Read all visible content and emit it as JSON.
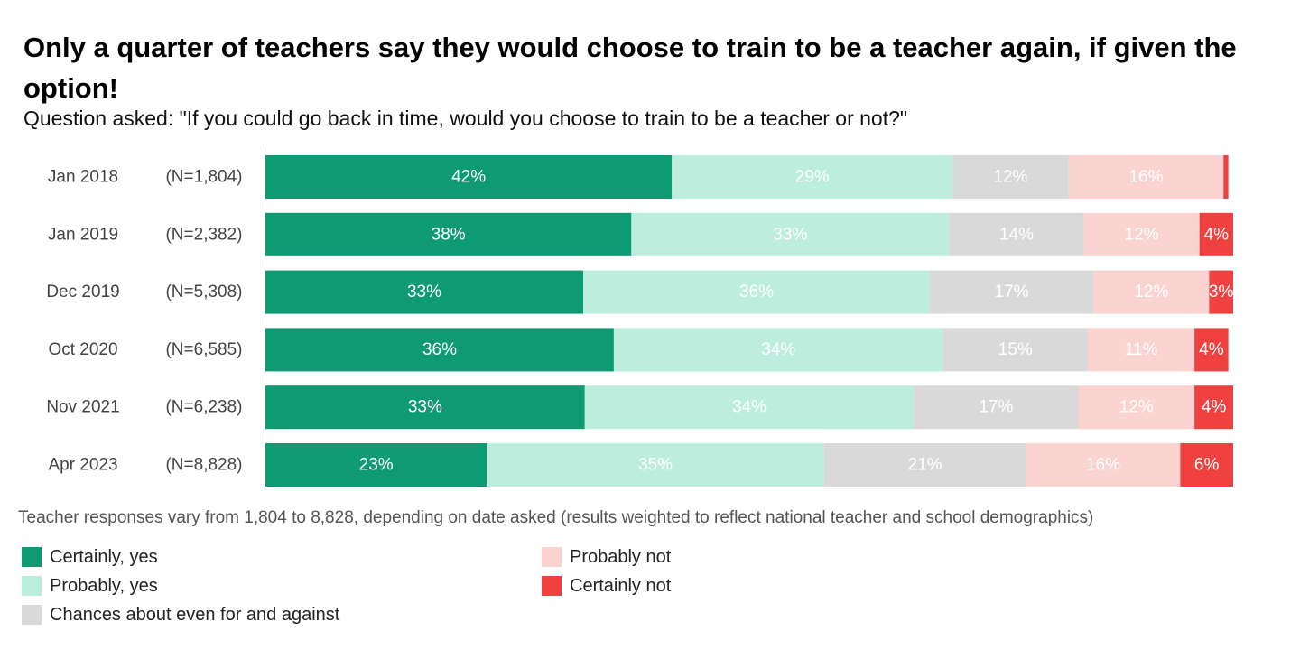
{
  "title": "Only a quarter of teachers say they would choose to train to be a teacher again, if given the option!",
  "subtitle": "Question asked: \"If you could go back in time, would you choose to train to be a teacher or not?\"",
  "note": "Teacher responses vary from 1,804 to 8,828, depending on date asked (results weighted to reflect national teacher and school demographics)",
  "colors": {
    "certainly_yes": "#0e9a72",
    "probably_yes": "#bdeedd",
    "even": "#d9d9d9",
    "probably_not": "#fbd3d1",
    "certainly_not": "#f04141"
  },
  "legend": [
    {
      "label": "Certainly, yes",
      "color": "#0e9a72"
    },
    {
      "label": "Probably, yes",
      "color": "#bdeedd"
    },
    {
      "label": "Chances about even for and against",
      "color": "#d9d9d9"
    },
    {
      "label": "Probably not",
      "color": "#fbd3d1"
    },
    {
      "label": "Certainly not",
      "color": "#f04141"
    }
  ],
  "chart_data": {
    "type": "bar",
    "orientation": "horizontal",
    "stacked": true,
    "normalized": true,
    "categories": [
      "Jan 2018",
      "Jan 2019",
      "Dec 2019",
      "Oct 2020",
      "Nov 2021",
      "Apr 2023"
    ],
    "sample_sizes": [
      "(N=1,804)",
      "(N=2,382)",
      "(N=5,308)",
      "(N=6,585)",
      "(N=6,238)",
      "(N=8,828)"
    ],
    "series": [
      {
        "name": "Certainly, yes",
        "values": [
          42,
          38,
          33,
          36,
          33,
          23
        ],
        "labels": [
          "42%",
          "38%",
          "33%",
          "36%",
          "33%",
          "23%"
        ],
        "color": "#0e9a72",
        "label_color": "#ffffff"
      },
      {
        "name": "Probably, yes",
        "values": [
          29,
          33,
          36,
          34,
          34,
          35
        ],
        "labels": [
          "29%",
          "33%",
          "36%",
          "34%",
          "34%",
          "35%"
        ],
        "color": "#bdeedd",
        "label_color": "#ffffff"
      },
      {
        "name": "Chances about even for and against",
        "values": [
          12,
          14,
          17,
          15,
          17,
          21
        ],
        "labels": [
          "12%",
          "14%",
          "17%",
          "15%",
          "17%",
          "21%"
        ],
        "color": "#d9d9d9",
        "label_color": "#ffffff"
      },
      {
        "name": "Probably not",
        "values": [
          16,
          12,
          12,
          11,
          12,
          16
        ],
        "labels": [
          "16%",
          "12%",
          "12%",
          "11%",
          "12%",
          "16%"
        ],
        "color": "#fbd3d1",
        "label_color": "#ffffff"
      },
      {
        "name": "Certainly not",
        "values": [
          0.5,
          3.5,
          2.5,
          3.5,
          4,
          5.5
        ],
        "labels": [
          "",
          "4%",
          "3%",
          "4%",
          "4%",
          "6%"
        ],
        "color": "#f04141",
        "label_color": "#ffffff"
      }
    ],
    "xlim": [
      0,
      100
    ],
    "legend_position": "bottom",
    "grid": false
  }
}
